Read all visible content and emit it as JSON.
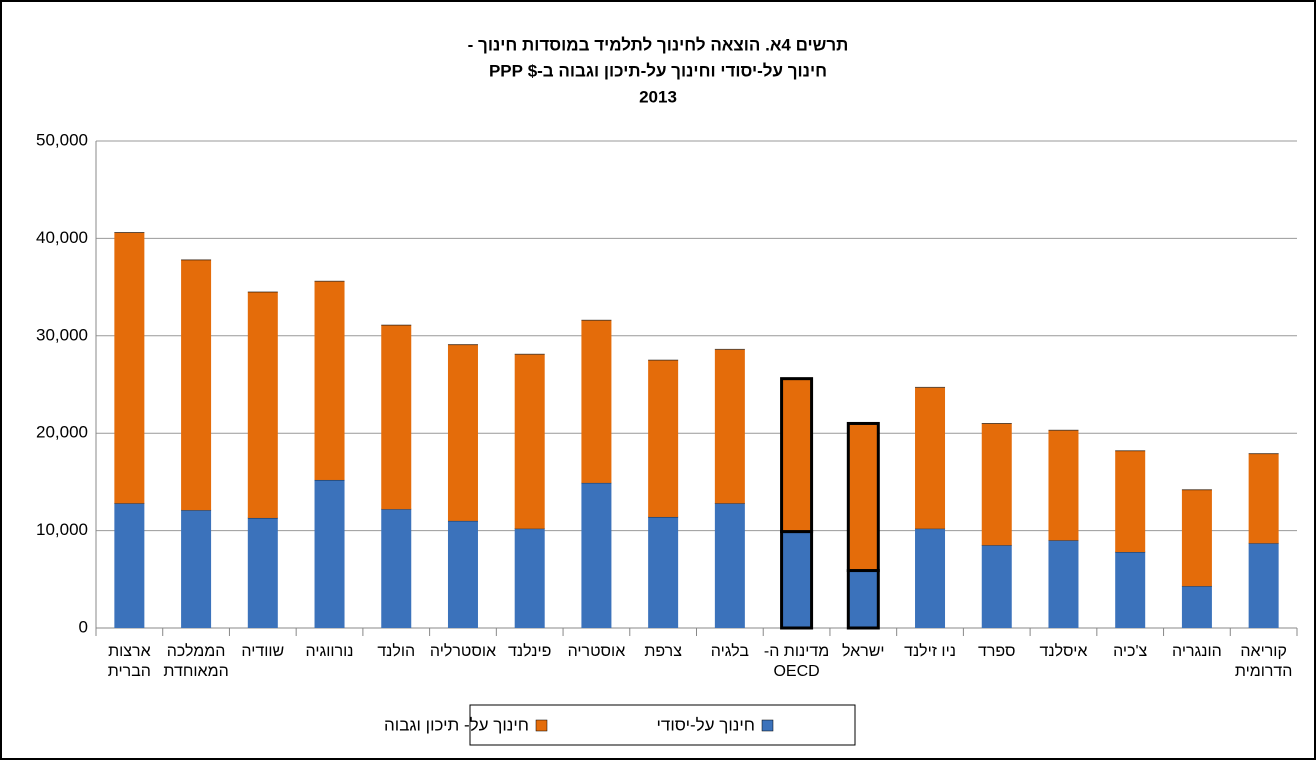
{
  "chart_data": {
    "type": "stacked-bar",
    "title_lines": [
      "תרשים 4א. הוצאה לחינוך לתלמיד במוסדות חינוך -",
      "חינוך על-יסודי וחינוך על-תיכון וגבוה ב-$ PPP",
      "2013"
    ],
    "categories": [
      "ארצות\nהברית",
      "הממלכה\nהמאוחדת",
      "שוודיה",
      "נורווגיה",
      "הולנד",
      "אוסטרליה",
      "פינלנד",
      "אוסטריה",
      "צרפת",
      "בלגיה",
      "מדינות ה-\nOECD",
      "ישראל",
      "ניו זילנד",
      "ספרד",
      "איסלנד",
      "צ'כיה",
      "הונגריה",
      "קוריאה\nהדרומית"
    ],
    "series": [
      {
        "name": "חינוך על-יסודי",
        "color": "#3b72bb",
        "values": [
          12800,
          12100,
          11300,
          15200,
          12200,
          11000,
          10200,
          14900,
          11400,
          12800,
          9900,
          5900,
          10200,
          8500,
          9000,
          7800,
          4300,
          8700
        ]
      },
      {
        "name": "חינוך על- תיכון וגבוה",
        "color": "#e46c0a",
        "values": [
          27800,
          25700,
          23200,
          20400,
          18900,
          18100,
          17900,
          16700,
          16100,
          15800,
          15700,
          15100,
          14500,
          12500,
          11300,
          10400,
          9900,
          9200
        ]
      }
    ],
    "outlined_categories": [
      10,
      11
    ],
    "ylim": [
      0,
      50000
    ],
    "yticks": [
      0,
      {
        "value": 10000,
        "label": "10,000"
      },
      {
        "value": 20000,
        "label": "20,000"
      },
      {
        "value": 30000,
        "label": "30,000"
      },
      {
        "value": 40000,
        "label": "40,000"
      },
      {
        "value": 50000,
        "label": "50,000"
      }
    ],
    "grid": true
  }
}
